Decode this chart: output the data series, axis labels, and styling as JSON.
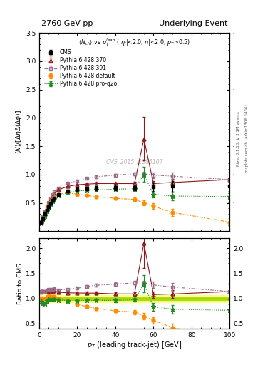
{
  "title_left": "2760 GeV pp",
  "title_right": "Underlying Event",
  "watermark": "CMS_2015_I1385107",
  "cms_x": [
    1,
    2,
    3,
    4,
    5,
    6,
    7,
    8,
    10,
    15,
    20,
    25,
    30,
    40,
    50,
    60,
    70,
    100
  ],
  "cms_y": [
    0.15,
    0.22,
    0.3,
    0.37,
    0.43,
    0.49,
    0.54,
    0.58,
    0.65,
    0.71,
    0.74,
    0.75,
    0.76,
    0.77,
    0.77,
    0.78,
    0.79,
    0.8
  ],
  "cms_yerr": [
    0.015,
    0.015,
    0.015,
    0.015,
    0.015,
    0.015,
    0.015,
    0.02,
    0.02,
    0.025,
    0.03,
    0.035,
    0.04,
    0.045,
    0.05,
    0.08,
    0.09,
    0.13
  ],
  "py370_x": [
    1,
    2,
    3,
    4,
    5,
    6,
    7,
    8,
    10,
    15,
    20,
    25,
    30,
    40,
    50,
    55,
    60,
    70,
    100
  ],
  "py370_y": [
    0.17,
    0.25,
    0.34,
    0.42,
    0.5,
    0.56,
    0.62,
    0.67,
    0.73,
    0.79,
    0.82,
    0.83,
    0.84,
    0.84,
    0.84,
    1.63,
    0.84,
    0.86,
    0.91
  ],
  "py370_yerr": [
    0.005,
    0.005,
    0.005,
    0.005,
    0.005,
    0.005,
    0.005,
    0.01,
    0.01,
    0.01,
    0.01,
    0.02,
    0.02,
    0.02,
    0.03,
    0.38,
    0.05,
    0.06,
    0.13
  ],
  "py391_x": [
    1,
    2,
    3,
    4,
    5,
    6,
    7,
    8,
    10,
    15,
    20,
    25,
    30,
    40,
    50,
    55,
    60,
    70,
    100
  ],
  "py391_y": [
    0.17,
    0.25,
    0.34,
    0.43,
    0.51,
    0.58,
    0.64,
    0.69,
    0.76,
    0.84,
    0.89,
    0.93,
    0.96,
    0.99,
    1.01,
    1.01,
    0.99,
    0.97,
    0.91
  ],
  "py391_yerr": [
    0.005,
    0.005,
    0.005,
    0.005,
    0.005,
    0.005,
    0.005,
    0.01,
    0.01,
    0.01,
    0.015,
    0.02,
    0.02,
    0.025,
    0.03,
    0.04,
    0.05,
    0.06,
    0.12
  ],
  "pydef_x": [
    1,
    2,
    3,
    4,
    5,
    6,
    7,
    8,
    10,
    15,
    20,
    25,
    30,
    40,
    50,
    55,
    60,
    70,
    100
  ],
  "pydef_y": [
    0.15,
    0.22,
    0.3,
    0.38,
    0.45,
    0.51,
    0.56,
    0.6,
    0.65,
    0.68,
    0.65,
    0.63,
    0.61,
    0.58,
    0.56,
    0.5,
    0.44,
    0.33,
    0.16
  ],
  "pydef_yerr": [
    0.005,
    0.005,
    0.005,
    0.005,
    0.005,
    0.005,
    0.005,
    0.01,
    0.01,
    0.01,
    0.015,
    0.02,
    0.02,
    0.025,
    0.03,
    0.05,
    0.05,
    0.06,
    0.07
  ],
  "pyq2o_x": [
    1,
    2,
    3,
    4,
    5,
    6,
    7,
    8,
    10,
    15,
    20,
    25,
    30,
    40,
    50,
    55,
    60,
    70,
    100
  ],
  "pyq2o_y": [
    0.14,
    0.2,
    0.27,
    0.35,
    0.42,
    0.48,
    0.53,
    0.57,
    0.63,
    0.68,
    0.71,
    0.72,
    0.73,
    0.74,
    0.75,
    1.0,
    0.65,
    0.62,
    0.61
  ],
  "pyq2o_yerr": [
    0.005,
    0.005,
    0.005,
    0.005,
    0.005,
    0.005,
    0.005,
    0.01,
    0.01,
    0.01,
    0.015,
    0.02,
    0.02,
    0.025,
    0.03,
    0.13,
    0.06,
    0.07,
    0.1
  ],
  "cms_color": "#000000",
  "py370_color": "#8B1A1A",
  "py391_color": "#9B6B8A",
  "pydef_color": "#FF8C00",
  "pyq2o_color": "#228B22",
  "ratio_band_outer_color": "#FFFF80",
  "ratio_band_inner_color": "#AADD00",
  "xlim": [
    0,
    100
  ],
  "ylim_main": [
    0.0,
    3.5
  ],
  "ylim_ratio": [
    0.4,
    2.2
  ],
  "yticks_main": [
    0.5,
    1.0,
    1.5,
    2.0,
    2.5,
    3.0,
    3.5
  ],
  "yticks_ratio": [
    0.5,
    1.0,
    1.5,
    2.0
  ]
}
